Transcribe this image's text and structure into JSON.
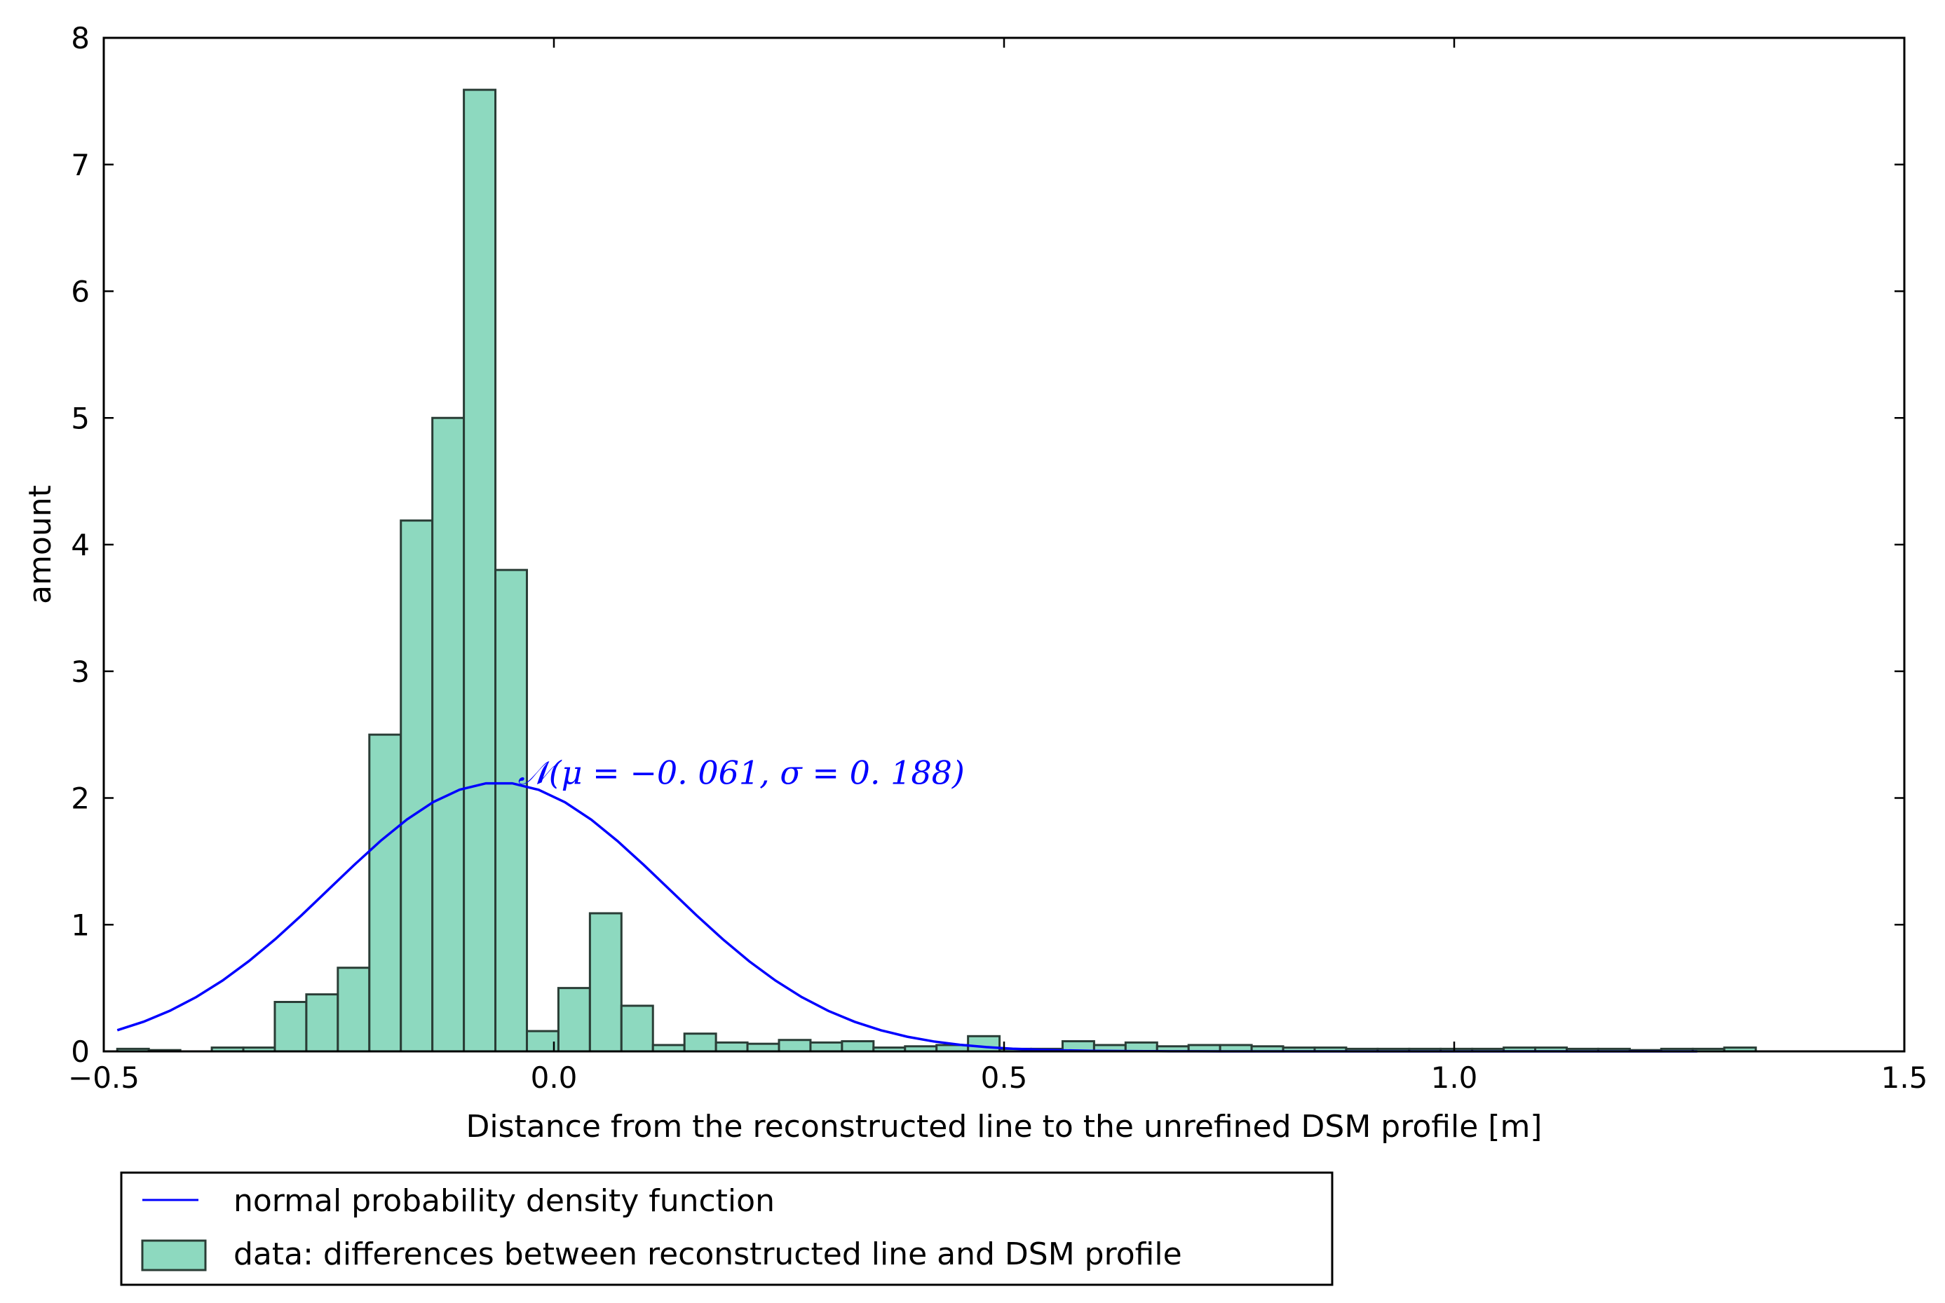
{
  "chart_data": {
    "type": "bar",
    "xlabel": "Distance from the reconstructed line to the unrefined DSM profile [m]",
    "ylabel": "amount",
    "xlim": [
      -0.5,
      1.5
    ],
    "ylim": [
      0,
      8
    ],
    "xticks": [
      -0.5,
      0.0,
      0.5,
      1.0,
      1.5
    ],
    "xtick_labels": [
      "−0.5",
      "0.0",
      "0.5",
      "1.0",
      "1.5"
    ],
    "yticks": [
      0,
      1,
      2,
      3,
      4,
      5,
      6,
      7,
      8
    ],
    "ytick_labels": [
      "0",
      "1",
      "2",
      "3",
      "4",
      "5",
      "6",
      "7",
      "8"
    ],
    "grid": false,
    "legend_position": "below",
    "series": [
      {
        "name": "data: differences between reconstructed line and DSM profile",
        "kind": "histogram",
        "color": "#8dd9bf",
        "edge_color": "#2a3d36",
        "bin_start": -0.485,
        "bin_width": 0.035,
        "values": [
          0.02,
          0.01,
          0.0,
          0.03,
          0.03,
          0.39,
          0.45,
          0.66,
          2.5,
          4.19,
          5.0,
          7.59,
          3.8,
          0.16,
          0.5,
          1.09,
          0.36,
          0.05,
          0.14,
          0.07,
          0.06,
          0.09,
          0.07,
          0.08,
          0.03,
          0.04,
          0.05,
          0.12,
          0.02,
          0.02,
          0.08,
          0.05,
          0.07,
          0.04,
          0.05,
          0.05,
          0.04,
          0.03,
          0.03,
          0.02,
          0.02,
          0.02,
          0.02,
          0.02,
          0.03,
          0.03,
          0.02,
          0.02,
          0.01,
          0.02,
          0.02,
          0.03
        ]
      },
      {
        "name": "normal probability density function",
        "kind": "line",
        "color": "#0000ff",
        "mu": -0.061,
        "sigma": 0.188,
        "x_range": [
          -0.485,
          1.27
        ]
      }
    ],
    "annotation": {
      "text": "𝒩(μ = −0. 061, σ = 0. 188)",
      "x": -0.04,
      "y": 2.2,
      "color": "#0000ff"
    }
  }
}
